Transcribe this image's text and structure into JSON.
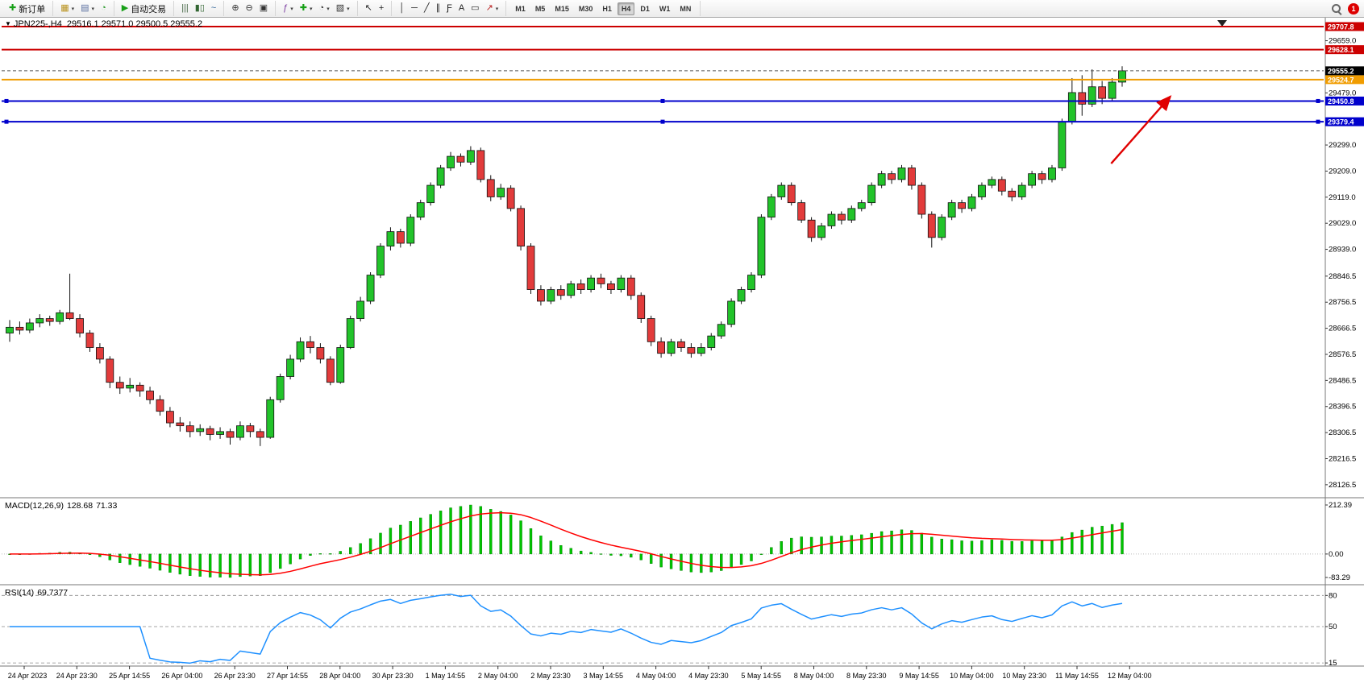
{
  "window": {
    "badge_count": "1"
  },
  "icons": {
    "collapse": "▼",
    "caret": "▾"
  },
  "toolbar": {
    "groups": [
      {
        "items": [
          {
            "name": "new-order",
            "glyph": "✚",
            "color": "#18a018",
            "label": "新订单"
          }
        ]
      },
      {
        "items": [
          {
            "name": "new-chart",
            "glyph": "▦",
            "color": "#b8901a",
            "caret": true
          },
          {
            "name": "profiles",
            "glyph": "▤",
            "color": "#5a6fa0",
            "caret": true
          },
          {
            "name": "refresh",
            "glyph": "◔",
            "color": "#2a9a2a"
          }
        ]
      },
      {
        "items": [
          {
            "name": "autotrading",
            "glyph": "▶",
            "color": "#18a018",
            "label": "自动交易"
          }
        ]
      },
      {
        "items": [
          {
            "name": "chart-bars",
            "glyph": "|||",
            "color": "#446644"
          },
          {
            "name": "chart-candles",
            "glyph": "▮▯",
            "color": "#336633"
          },
          {
            "name": "chart-line",
            "glyph": "~",
            "color": "#336699"
          }
        ]
      },
      {
        "items": [
          {
            "name": "zoom-in",
            "glyph": "⊕",
            "color": "#333333"
          },
          {
            "name": "zoom-out",
            "glyph": "⊖",
            "color": "#333333"
          },
          {
            "name": "tile-windows",
            "glyph": "▣",
            "color": "#333333"
          }
        ]
      },
      {
        "items": [
          {
            "name": "indicators",
            "glyph": "ƒ",
            "color": "#7a3aa0",
            "caret": true
          },
          {
            "name": "add-indicator",
            "glyph": "✚",
            "color": "#18a018",
            "caret": true
          },
          {
            "name": "periods",
            "glyph": "◔",
            "color": "#333333",
            "caret": true
          },
          {
            "name": "templates",
            "glyph": "▧",
            "color": "#333333",
            "caret": true
          }
        ]
      },
      {
        "items": [
          {
            "name": "cursor",
            "glyph": "↖",
            "color": "#222222"
          },
          {
            "name": "crosshair",
            "glyph": "+",
            "color": "#222222"
          }
        ]
      },
      {
        "items": [
          {
            "name": "vertical-line",
            "glyph": "│",
            "color": "#222222"
          },
          {
            "name": "horizontal-line",
            "glyph": "─",
            "color": "#222222"
          },
          {
            "name": "trendline",
            "glyph": "╱",
            "color": "#222222"
          },
          {
            "name": "channel",
            "glyph": "∥",
            "color": "#222222"
          },
          {
            "name": "fibonacci",
            "glyph": "Ƒ",
            "color": "#222222"
          },
          {
            "name": "text",
            "glyph": "A",
            "color": "#222222"
          },
          {
            "name": "text-label",
            "glyph": "▭",
            "color": "#222222"
          },
          {
            "name": "arrows",
            "glyph": "↗",
            "color": "#bb2222",
            "caret": true
          }
        ]
      }
    ],
    "timeframes": [
      "M1",
      "M5",
      "M15",
      "M30",
      "H1",
      "H4",
      "D1",
      "W1",
      "MN"
    ],
    "active_timeframe": "H4"
  },
  "chart": {
    "symbol": "JPN225-,H4",
    "ohlc_text": "29516.1 29571.0 29500.5 29555.2",
    "current_price": "29555.2",
    "lines": [
      {
        "name": "resistance-line-upper",
        "label": "29707.8",
        "price": 29707.8,
        "color": "#cc0000",
        "width": 2,
        "selected": false
      },
      {
        "name": "resistance-line-lower",
        "label": "29628.1",
        "price": 29628.1,
        "color": "#cc0000",
        "width": 2,
        "selected": false
      },
      {
        "name": "breakout-line",
        "label": "29524.7",
        "price": 29524.7,
        "color": "#f09c00",
        "width": 2,
        "selected": false
      },
      {
        "name": "support-line-upper",
        "label": "29450.8",
        "price": 29450.8,
        "color": "#0000cc",
        "width": 2,
        "selected": true
      },
      {
        "name": "support-line-lower",
        "label": "29379.4",
        "price": 29379.4,
        "color": "#0000cc",
        "width": 2,
        "selected": true
      }
    ],
    "scale_labels": [
      "29659.0",
      "29479.0",
      "29299.0",
      "29209.0",
      "29119.0",
      "29029.0",
      "28939.0",
      "28846.5",
      "28756.5",
      "28666.5",
      "28576.5",
      "28486.5",
      "28396.5",
      "28306.5",
      "28216.5",
      "28126.5"
    ],
    "arrow": {
      "from_bar": 109.9,
      "from_price": 29235,
      "to_bar": 115.8,
      "to_price": 29466,
      "color": "#e00000"
    }
  },
  "macd": {
    "name": "MACD(12,26,9)",
    "value_main": "128.68",
    "value_signal": "71.33",
    "scale": {
      "max": "212.39",
      "zero": "0.00",
      "min": "-83.29"
    }
  },
  "rsi": {
    "name": "RSI(14)",
    "value": "69.7377",
    "scale": [
      "80",
      "50",
      "15"
    ],
    "levels": [
      80,
      50,
      15
    ]
  },
  "time_axis": [
    "24 Apr 2023",
    "24 Apr 23:30",
    "25 Apr 14:55",
    "26 Apr 04:00",
    "26 Apr 23:30",
    "27 Apr 14:55",
    "28 Apr 04:00",
    "30 Apr 23:30",
    "1 May 14:55",
    "2 May 04:00",
    "2 May 23:30",
    "3 May 14:55",
    "4 May 04:00",
    "4 May 23:30",
    "5 May 14:55",
    "8 May 04:00",
    "8 May 23:30",
    "9 May 14:55",
    "10 May 04:00",
    "10 May 23:30",
    "11 May 14:55",
    "12 May 04:00"
  ],
  "chart_data": {
    "type": "candlestick",
    "symbol": "JPN225-",
    "timeframe": "H4",
    "title": "JPN225-,H4",
    "last_ohlc": {
      "open": 29516.1,
      "high": 29571.0,
      "low": 29500.5,
      "close": 29555.2
    },
    "visible_price_range": [
      28126.5,
      29707.8
    ],
    "up_color": "#22c32a",
    "down_color": "#e23b3b",
    "candles": [
      [
        28650,
        28695,
        28620,
        28670
      ],
      [
        28670,
        28690,
        28645,
        28660
      ],
      [
        28660,
        28700,
        28650,
        28685
      ],
      [
        28685,
        28715,
        28670,
        28700
      ],
      [
        28700,
        28710,
        28675,
        28690
      ],
      [
        28690,
        28730,
        28680,
        28720
      ],
      [
        28720,
        28855,
        28695,
        28700
      ],
      [
        28700,
        28715,
        28635,
        28650
      ],
      [
        28650,
        28660,
        28585,
        28600
      ],
      [
        28600,
        28615,
        28545,
        28560
      ],
      [
        28560,
        28570,
        28460,
        28480
      ],
      [
        28480,
        28500,
        28440,
        28460
      ],
      [
        28460,
        28495,
        28445,
        28470
      ],
      [
        28470,
        28480,
        28430,
        28450
      ],
      [
        28450,
        28465,
        28405,
        28420
      ],
      [
        28420,
        28435,
        28365,
        28380
      ],
      [
        28380,
        28395,
        28325,
        28340
      ],
      [
        28340,
        28360,
        28310,
        28330
      ],
      [
        28330,
        28345,
        28290,
        28310
      ],
      [
        28310,
        28335,
        28295,
        28320
      ],
      [
        28320,
        28330,
        28280,
        28300
      ],
      [
        28300,
        28325,
        28285,
        28310
      ],
      [
        28310,
        28320,
        28265,
        28290
      ],
      [
        28290,
        28345,
        28280,
        28330
      ],
      [
        28330,
        28340,
        28290,
        28310
      ],
      [
        28310,
        28320,
        28260,
        28290
      ],
      [
        28290,
        28430,
        28285,
        28420
      ],
      [
        28420,
        28510,
        28410,
        28500
      ],
      [
        28500,
        28575,
        28490,
        28560
      ],
      [
        28560,
        28635,
        28550,
        28620
      ],
      [
        28620,
        28640,
        28580,
        28600
      ],
      [
        28600,
        28615,
        28545,
        28560
      ],
      [
        28560,
        28570,
        28470,
        28480
      ],
      [
        28480,
        28610,
        28475,
        28600
      ],
      [
        28600,
        28710,
        28595,
        28700
      ],
      [
        28700,
        28775,
        28690,
        28760
      ],
      [
        28760,
        28860,
        28750,
        28850
      ],
      [
        28850,
        28960,
        28840,
        28950
      ],
      [
        28950,
        29015,
        28935,
        29000
      ],
      [
        29000,
        29010,
        28945,
        28960
      ],
      [
        28960,
        29060,
        28950,
        29050
      ],
      [
        29050,
        29110,
        29040,
        29100
      ],
      [
        29100,
        29170,
        29090,
        29160
      ],
      [
        29160,
        29230,
        29150,
        29220
      ],
      [
        29220,
        29275,
        29210,
        29260
      ],
      [
        29260,
        29270,
        29225,
        29240
      ],
      [
        29240,
        29295,
        29230,
        29280
      ],
      [
        29280,
        29290,
        29170,
        29180
      ],
      [
        29180,
        29195,
        29105,
        29120
      ],
      [
        29120,
        29165,
        29110,
        29150
      ],
      [
        29150,
        29160,
        29070,
        29080
      ],
      [
        29080,
        29090,
        28935,
        28950
      ],
      [
        28950,
        28960,
        28785,
        28800
      ],
      [
        28800,
        28815,
        28745,
        28760
      ],
      [
        28760,
        28810,
        28750,
        28800
      ],
      [
        28800,
        28815,
        28765,
        28780
      ],
      [
        28780,
        28830,
        28770,
        28820
      ],
      [
        28820,
        28835,
        28785,
        28800
      ],
      [
        28800,
        28850,
        28790,
        28840
      ],
      [
        28840,
        28855,
        28805,
        28820
      ],
      [
        28820,
        28830,
        28785,
        28800
      ],
      [
        28800,
        28850,
        28790,
        28840
      ],
      [
        28840,
        28850,
        28765,
        28780
      ],
      [
        28780,
        28790,
        28685,
        28700
      ],
      [
        28700,
        28710,
        28605,
        28620
      ],
      [
        28620,
        28635,
        28565,
        28580
      ],
      [
        28580,
        28630,
        28570,
        28620
      ],
      [
        28620,
        28630,
        28585,
        28600
      ],
      [
        28600,
        28615,
        28565,
        28580
      ],
      [
        28580,
        28615,
        28570,
        28600
      ],
      [
        28600,
        28650,
        28590,
        28640
      ],
      [
        28640,
        28690,
        28630,
        28680
      ],
      [
        28680,
        28770,
        28670,
        28760
      ],
      [
        28760,
        28810,
        28750,
        28800
      ],
      [
        28800,
        28860,
        28790,
        28850
      ],
      [
        28850,
        29060,
        28840,
        29050
      ],
      [
        29050,
        29130,
        29040,
        29120
      ],
      [
        29120,
        29170,
        29110,
        29160
      ],
      [
        29160,
        29170,
        29090,
        29100
      ],
      [
        29100,
        29110,
        29030,
        29040
      ],
      [
        29040,
        29050,
        28965,
        28980
      ],
      [
        28980,
        29030,
        28970,
        29020
      ],
      [
        29020,
        29070,
        29010,
        29060
      ],
      [
        29060,
        29070,
        29025,
        29040
      ],
      [
        29040,
        29090,
        29030,
        29080
      ],
      [
        29080,
        29110,
        29070,
        29100
      ],
      [
        29100,
        29170,
        29090,
        29160
      ],
      [
        29160,
        29210,
        29150,
        29200
      ],
      [
        29200,
        29210,
        29165,
        29180
      ],
      [
        29180,
        29230,
        29170,
        29220
      ],
      [
        29220,
        29230,
        29145,
        29160
      ],
      [
        29160,
        29170,
        29045,
        29060
      ],
      [
        29060,
        29070,
        28945,
        28980
      ],
      [
        28980,
        29060,
        28970,
        29050
      ],
      [
        29050,
        29110,
        29040,
        29100
      ],
      [
        29100,
        29110,
        29065,
        29080
      ],
      [
        29080,
        29130,
        29070,
        29120
      ],
      [
        29120,
        29170,
        29110,
        29160
      ],
      [
        29160,
        29190,
        29150,
        29180
      ],
      [
        29180,
        29190,
        29125,
        29140
      ],
      [
        29140,
        29150,
        29105,
        29120
      ],
      [
        29120,
        29170,
        29110,
        29160
      ],
      [
        29160,
        29210,
        29150,
        29200
      ],
      [
        29200,
        29210,
        29165,
        29180
      ],
      [
        29180,
        29230,
        29170,
        29220
      ],
      [
        29220,
        29390,
        29210,
        29380
      ],
      [
        29380,
        29530,
        29370,
        29480
      ],
      [
        29480,
        29540,
        29400,
        29440
      ],
      [
        29440,
        29560,
        29430,
        29500
      ],
      [
        29500,
        29520,
        29440,
        29460
      ],
      [
        29460,
        29530,
        29450,
        29516
      ],
      [
        29516.1,
        29571.0,
        29500.5,
        29555.2
      ]
    ]
  }
}
